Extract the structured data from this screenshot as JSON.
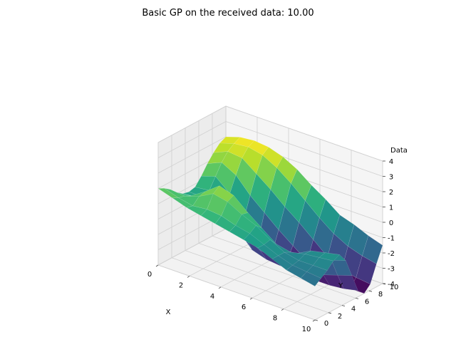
{
  "chart_data": {
    "type": "surface",
    "title": "Basic GP on the received data: 10.00",
    "xlabel": "X",
    "ylabel": "Y",
    "zlabel": "Data",
    "xlim": [
      0,
      10
    ],
    "ylim": [
      0,
      10
    ],
    "zlim": [
      -4,
      4
    ],
    "xticks": [
      0,
      2,
      4,
      6,
      8,
      10
    ],
    "yticks": [
      0,
      2,
      4,
      6,
      8,
      10
    ],
    "zticks": [
      -4,
      -3,
      -2,
      -1,
      0,
      1,
      2,
      3,
      4
    ],
    "grid": true,
    "colormap": "viridis",
    "x": [
      0,
      0.909,
      1.818,
      2.727,
      3.636,
      4.545,
      5.455,
      6.364,
      7.273,
      8.182,
      9.091,
      10
    ],
    "y": [
      0,
      0.909,
      1.818,
      2.727,
      3.636,
      4.545,
      5.455,
      6.364,
      7.273,
      8.182,
      9.091,
      10
    ],
    "z": [
      [
        1.0,
        0.8,
        0.5,
        0.1,
        -0.2,
        -0.3,
        -0.2,
        0.3,
        0.9,
        1.4,
        1.8,
        2.0
      ],
      [
        0.7,
        0.5,
        0.4,
        0.2,
        -0.1,
        -0.3,
        -0.1,
        0.6,
        1.3,
        1.8,
        2.1,
        2.3
      ],
      [
        0.4,
        0.3,
        0.7,
        0.8,
        0.3,
        -0.5,
        -1.0,
        -0.2,
        0.8,
        1.7,
        2.2,
        2.4
      ],
      [
        0.2,
        0.4,
        1.2,
        1.5,
        0.5,
        -1.2,
        -2.0,
        -1.5,
        -0.2,
        1.0,
        2.0,
        2.3
      ],
      [
        0.0,
        0.3,
        1.0,
        1.2,
        0.0,
        -2.0,
        -3.0,
        -2.6,
        -1.0,
        0.3,
        1.5,
        2.0
      ],
      [
        -0.2,
        0.0,
        0.5,
        0.4,
        -0.8,
        -2.5,
        -3.3,
        -3.0,
        -1.8,
        -0.5,
        0.8,
        1.5
      ],
      [
        -0.4,
        -0.2,
        0.1,
        -0.3,
        -1.3,
        -2.6,
        -3.4,
        -3.3,
        -2.5,
        -1.2,
        0.0,
        0.8
      ],
      [
        -0.6,
        -0.6,
        -0.5,
        -1.0,
        -1.6,
        -2.5,
        -3.3,
        -3.7,
        -3.2,
        -2.0,
        -0.8,
        0.2
      ],
      [
        -1.0,
        -1.0,
        -1.0,
        -1.2,
        -1.5,
        -2.2,
        -3.2,
        -3.9,
        -3.9,
        -2.8,
        -1.5,
        -0.5
      ],
      [
        -1.4,
        -1.3,
        -1.2,
        -1.0,
        -1.0,
        -1.8,
        -3.0,
        -3.9,
        -4.0,
        -3.3,
        -2.0,
        -0.8
      ],
      [
        -1.6,
        -1.4,
        -1.2,
        -0.9,
        -0.8,
        -1.5,
        -2.7,
        -3.8,
        -4.0,
        -3.5,
        -2.3,
        -1.2
      ],
      [
        -1.8,
        -1.5,
        -1.2,
        -0.8,
        -0.6,
        -1.2,
        -2.4,
        -3.6,
        -4.0,
        -3.6,
        -2.5,
        -1.5
      ]
    ]
  }
}
